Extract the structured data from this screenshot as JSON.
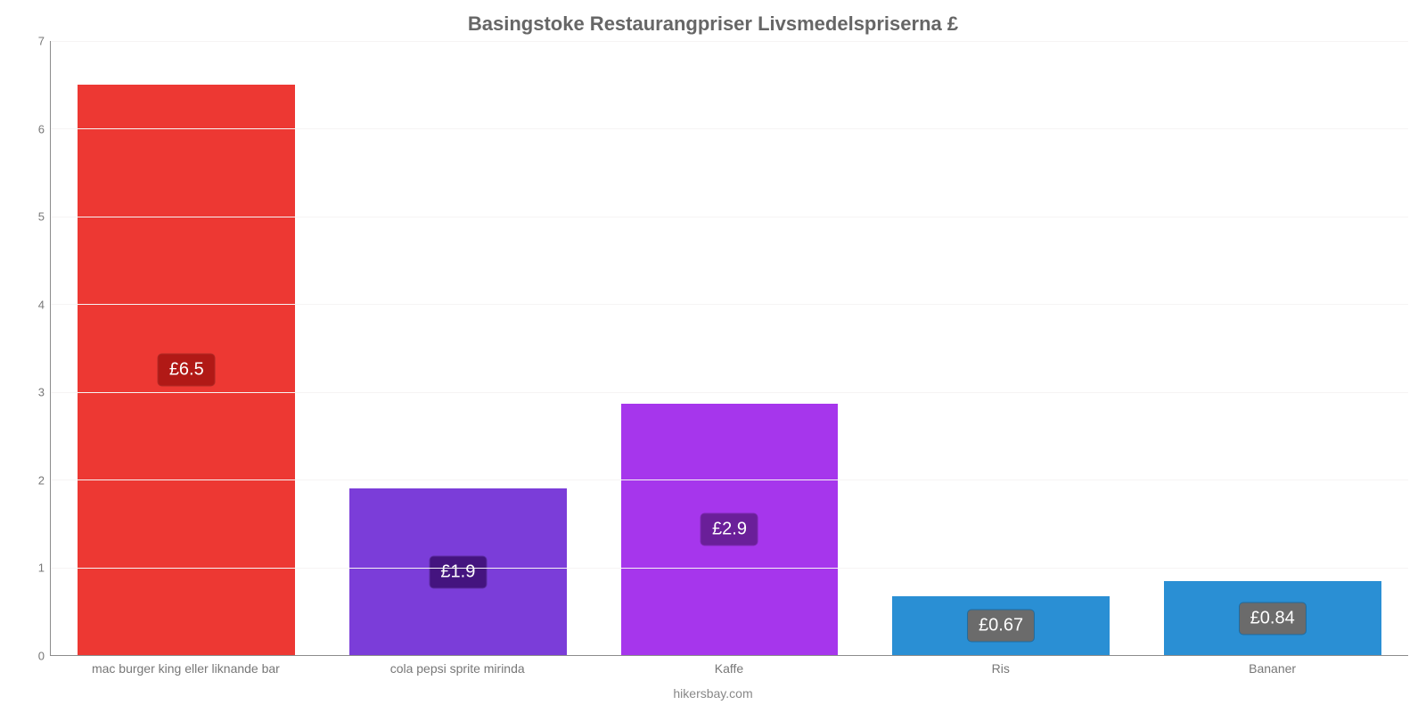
{
  "chart": {
    "type": "bar",
    "title": "Basingstoke Restaurangpriser Livsmedelspriserna £",
    "title_fontsize": 22,
    "title_color": "#666666",
    "footer": "hikersbay.com",
    "footer_color": "#888888",
    "background_color": "#ffffff",
    "axis_color": "#8c8c8c",
    "grid_color": "#f6f4f4",
    "tick_label_color": "#777777",
    "tick_fontsize": 13,
    "xlabel_fontsize": 14,
    "ylim": [
      0,
      7
    ],
    "yticks": [
      0,
      1,
      2,
      3,
      4,
      5,
      6,
      7
    ],
    "bar_width_pct": 16,
    "gap_pct": 4,
    "badge_fontsize": 20,
    "categories": [
      "mac burger king eller liknande bar",
      "cola pepsi sprite mirinda",
      "Kaffe",
      "Ris",
      "Bananer"
    ],
    "values": [
      6.5,
      1.9,
      2.87,
      0.67,
      0.84
    ],
    "value_labels": [
      "£6.5",
      "£1.9",
      "£2.9",
      "£0.67",
      "£0.84"
    ],
    "bar_colors": [
      "#ed3833",
      "#7b3dd9",
      "#a636ec",
      "#2a8fd4",
      "#2a8fd4"
    ],
    "badge_bg_colors": [
      "#b11916",
      "#44147f",
      "#6a1f99",
      "#6b6b6b",
      "#6b6b6b"
    ]
  }
}
